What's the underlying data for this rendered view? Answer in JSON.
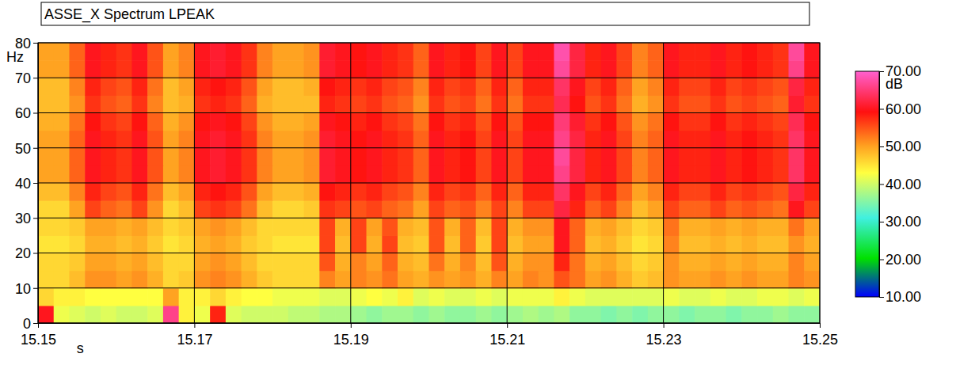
{
  "chart_data": {
    "type": "heatmap",
    "title": "ASSE_X Spectrum LPEAK",
    "x_label": "s",
    "y_label": "Hz",
    "xlim": [
      15.15,
      15.25
    ],
    "ylim": [
      0,
      80
    ],
    "xticks": [
      15.15,
      15.17,
      15.19,
      15.21,
      15.23,
      15.25
    ],
    "yticks": [
      0,
      10,
      20,
      30,
      40,
      50,
      60,
      70,
      80
    ],
    "grid": true,
    "x_bins": [
      15.15,
      15.152,
      15.154,
      15.156,
      15.158,
      15.16,
      15.162,
      15.164,
      15.166,
      15.168,
      15.17,
      15.172,
      15.174,
      15.176,
      15.178,
      15.18,
      15.182,
      15.184,
      15.186,
      15.188,
      15.19,
      15.192,
      15.194,
      15.196,
      15.198,
      15.2,
      15.202,
      15.204,
      15.206,
      15.208,
      15.21,
      15.212,
      15.214,
      15.216,
      15.218,
      15.22,
      15.222,
      15.224,
      15.226,
      15.228,
      15.23,
      15.232,
      15.234,
      15.236,
      15.238,
      15.24,
      15.242,
      15.244,
      15.246,
      15.248,
      15.25
    ],
    "y_bins": [
      0,
      5,
      10,
      15,
      20,
      25,
      30,
      35,
      40,
      45,
      50,
      55,
      60,
      65,
      70,
      75,
      80
    ],
    "cells": [
      [
        60,
        42,
        41,
        40,
        41,
        40,
        40,
        41,
        66,
        44,
        42,
        58,
        41,
        40,
        40,
        40,
        39,
        39,
        38,
        38,
        37,
        36,
        37,
        37,
        36,
        37,
        36,
        36,
        37,
        36,
        37,
        38,
        37,
        38,
        36,
        36,
        35,
        36,
        35,
        36,
        36,
        35,
        36,
        36,
        35,
        36,
        36,
        37,
        36,
        36
      ],
      [
        46,
        44,
        44,
        43,
        43,
        43,
        43,
        43,
        50,
        44,
        44,
        46,
        44,
        43,
        43,
        42,
        42,
        42,
        41,
        41,
        42,
        43,
        42,
        44,
        41,
        42,
        41,
        41,
        42,
        41,
        42,
        42,
        42,
        44,
        42,
        41,
        41,
        41,
        41,
        41,
        42,
        41,
        41,
        42,
        41,
        41,
        42,
        42,
        41,
        42
      ],
      [
        46,
        46,
        48,
        51,
        51,
        50,
        51,
        49,
        46,
        47,
        51,
        52,
        51,
        49,
        47,
        46,
        46,
        46,
        52,
        50,
        52,
        51,
        53,
        50,
        49,
        51,
        50,
        51,
        49,
        52,
        50,
        52,
        51,
        55,
        53,
        50,
        51,
        49,
        47,
        48,
        51,
        50,
        50,
        51,
        50,
        51,
        50,
        50,
        52,
        51
      ],
      [
        46,
        46,
        47,
        50,
        50,
        49,
        50,
        48,
        46,
        46,
        50,
        51,
        50,
        48,
        46,
        46,
        46,
        46,
        55,
        49,
        52,
        50,
        54,
        49,
        48,
        53,
        49,
        52,
        48,
        55,
        49,
        51,
        51,
        58,
        53,
        49,
        50,
        48,
        46,
        47,
        51,
        49,
        49,
        50,
        49,
        50,
        49,
        49,
        52,
        50
      ],
      [
        45,
        45,
        46,
        49,
        49,
        48,
        49,
        47,
        45,
        46,
        49,
        50,
        49,
        47,
        46,
        45,
        45,
        45,
        56,
        48,
        56,
        49,
        56,
        48,
        47,
        55,
        48,
        54,
        47,
        56,
        48,
        50,
        50,
        60,
        54,
        48,
        49,
        47,
        45,
        46,
        52,
        48,
        48,
        49,
        48,
        49,
        48,
        48,
        51,
        49
      ],
      [
        46,
        46,
        47,
        50,
        50,
        49,
        50,
        48,
        46,
        47,
        50,
        51,
        50,
        48,
        46,
        46,
        46,
        46,
        56,
        49,
        56,
        50,
        55,
        49,
        48,
        55,
        49,
        54,
        48,
        56,
        49,
        51,
        51,
        60,
        54,
        49,
        50,
        48,
        46,
        47,
        53,
        49,
        49,
        50,
        49,
        50,
        49,
        49,
        53,
        50
      ],
      [
        46,
        46,
        50,
        56,
        54,
        53,
        56,
        51,
        46,
        48,
        56,
        57,
        56,
        53,
        48,
        46,
        46,
        47,
        57,
        56,
        55,
        56,
        54,
        53,
        50,
        56,
        54,
        55,
        52,
        56,
        52,
        56,
        56,
        62,
        58,
        54,
        56,
        52,
        48,
        50,
        56,
        54,
        54,
        56,
        54,
        55,
        54,
        53,
        60,
        56
      ],
      [
        48,
        48,
        52,
        58,
        56,
        55,
        58,
        53,
        48,
        50,
        58,
        59,
        58,
        55,
        50,
        48,
        48,
        49,
        59,
        58,
        57,
        58,
        56,
        55,
        52,
        58,
        56,
        57,
        54,
        58,
        54,
        58,
        58,
        64,
        60,
        56,
        58,
        54,
        50,
        52,
        58,
        56,
        56,
        58,
        56,
        57,
        56,
        55,
        62,
        58
      ],
      [
        50,
        50,
        54,
        60,
        58,
        57,
        60,
        55,
        50,
        52,
        60,
        61,
        60,
        57,
        52,
        50,
        50,
        51,
        61,
        60,
        59,
        60,
        58,
        57,
        54,
        60,
        58,
        59,
        56,
        60,
        56,
        60,
        60,
        66,
        62,
        58,
        60,
        56,
        52,
        54,
        60,
        58,
        58,
        60,
        58,
        59,
        58,
        57,
        64,
        60
      ],
      [
        50,
        50,
        54,
        60,
        58,
        57,
        60,
        55,
        50,
        52,
        60,
        61,
        60,
        57,
        52,
        50,
        50,
        51,
        61,
        60,
        59,
        60,
        58,
        57,
        54,
        60,
        58,
        59,
        56,
        60,
        56,
        60,
        60,
        67,
        62,
        58,
        60,
        56,
        52,
        54,
        60,
        58,
        58,
        60,
        58,
        59,
        58,
        57,
        64,
        60
      ],
      [
        50,
        50,
        54,
        60,
        58,
        57,
        60,
        55,
        50,
        52,
        60,
        61,
        60,
        57,
        52,
        50,
        50,
        51,
        61,
        60,
        59,
        60,
        58,
        57,
        54,
        60,
        58,
        59,
        56,
        60,
        56,
        60,
        60,
        66,
        62,
        58,
        60,
        56,
        52,
        54,
        60,
        58,
        58,
        60,
        58,
        59,
        58,
        57,
        64,
        60
      ],
      [
        49,
        49,
        53,
        59,
        57,
        56,
        59,
        54,
        49,
        51,
        59,
        60,
        59,
        56,
        51,
        49,
        49,
        50,
        60,
        59,
        58,
        59,
        57,
        56,
        53,
        59,
        57,
        58,
        55,
        59,
        55,
        59,
        59,
        65,
        61,
        57,
        59,
        55,
        51,
        53,
        59,
        57,
        57,
        59,
        57,
        58,
        57,
        56,
        63,
        59
      ],
      [
        48,
        48,
        51,
        57,
        55,
        54,
        57,
        52,
        48,
        49,
        57,
        58,
        57,
        54,
        49,
        48,
        48,
        48,
        58,
        57,
        56,
        57,
        55,
        54,
        51,
        57,
        55,
        56,
        53,
        57,
        53,
        57,
        57,
        63,
        59,
        55,
        57,
        53,
        49,
        51,
        57,
        55,
        55,
        57,
        55,
        56,
        55,
        54,
        61,
        57
      ],
      [
        48,
        48,
        52,
        58,
        56,
        55,
        58,
        53,
        48,
        50,
        58,
        59,
        58,
        55,
        50,
        48,
        48,
        49,
        59,
        58,
        57,
        58,
        56,
        55,
        52,
        58,
        56,
        57,
        54,
        58,
        54,
        58,
        58,
        64,
        60,
        56,
        58,
        54,
        50,
        52,
        58,
        56,
        56,
        58,
        56,
        57,
        56,
        55,
        62,
        58
      ],
      [
        50,
        50,
        54,
        60,
        58,
        57,
        60,
        55,
        50,
        52,
        60,
        61,
        60,
        57,
        52,
        50,
        50,
        51,
        61,
        60,
        59,
        60,
        58,
        57,
        54,
        60,
        58,
        59,
        56,
        60,
        56,
        60,
        60,
        67,
        62,
        58,
        60,
        56,
        52,
        54,
        60,
        58,
        58,
        60,
        58,
        59,
        58,
        57,
        66,
        60
      ],
      [
        50,
        50,
        54,
        60,
        58,
        57,
        60,
        55,
        50,
        52,
        60,
        61,
        60,
        57,
        52,
        50,
        50,
        51,
        61,
        60,
        59,
        60,
        58,
        57,
        54,
        60,
        58,
        59,
        56,
        60,
        56,
        60,
        60,
        68,
        62,
        58,
        60,
        56,
        52,
        54,
        60,
        58,
        58,
        60,
        58,
        59,
        58,
        57,
        67,
        60
      ]
    ],
    "colorbar": {
      "label": "dB",
      "range": [
        10,
        70
      ],
      "ticks": [
        {
          "value": 10,
          "label": "10.00"
        },
        {
          "value": 20,
          "label": "20.00"
        },
        {
          "value": 30,
          "label": "30.00"
        },
        {
          "value": 40,
          "label": "40.00"
        },
        {
          "value": 50,
          "label": "50.00"
        },
        {
          "value": 60,
          "label": "60.00"
        },
        {
          "value": 70,
          "label": "70.00"
        }
      ]
    }
  }
}
